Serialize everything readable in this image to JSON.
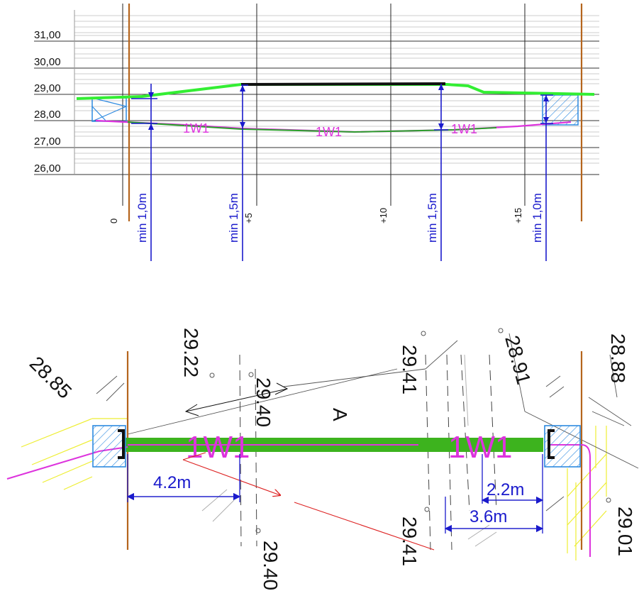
{
  "profile": {
    "elevations": [
      "31,00",
      "30,00",
      "29,00",
      "28,00",
      "27,00",
      "26,00"
    ],
    "stations": [
      "0",
      "+5",
      "+10",
      "+15"
    ],
    "pipe_labels": [
      "1W1",
      "1W1",
      "1W1"
    ],
    "depth_labels": [
      "min 1,0m",
      "min 1,5m",
      "min 1,5m",
      "min 1,0m"
    ]
  },
  "plan": {
    "spot_heights": {
      "top_left": "28.85",
      "upper_1": "29.22",
      "upper_2": "29.40",
      "upper_3": "29.41",
      "upper_4": "28.91",
      "top_right": "28.88",
      "lower_1": "29.40",
      "lower_2": "29.41",
      "lower_right": "29.01"
    },
    "area_label": "A",
    "pipe_labels": [
      "1W1",
      "1W1"
    ],
    "dimensions": [
      "4.2m",
      "2.2m",
      "3.6m"
    ]
  },
  "colors": {
    "ground": "#33ee33",
    "pipe": "#dd33dd",
    "dimension": "#1a1acc",
    "border": "#b5651d",
    "manhole": "#2d8ae0",
    "plan_pipe_band": "#3db31e"
  }
}
